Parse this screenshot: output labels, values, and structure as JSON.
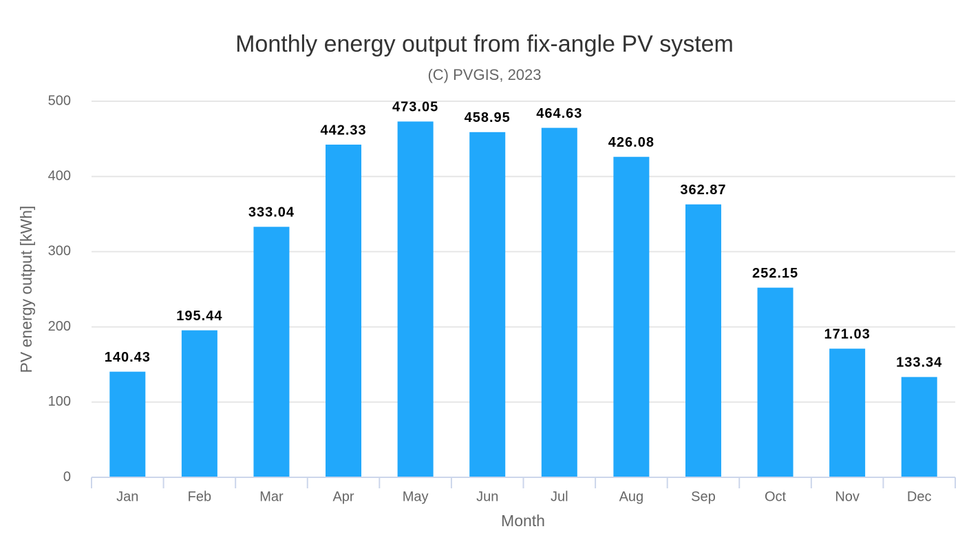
{
  "chart_data": {
    "type": "bar",
    "title": "Monthly energy output from fix-angle PV system",
    "subtitle": "(C) PVGIS, 2023",
    "x_label": "Month",
    "y_label": "PV energy output [kWh]",
    "categories": [
      "Jan",
      "Feb",
      "Mar",
      "Apr",
      "May",
      "Jun",
      "Jul",
      "Aug",
      "Sep",
      "Oct",
      "Nov",
      "Dec"
    ],
    "values": [
      140.43,
      195.44,
      333.04,
      442.33,
      473.05,
      458.95,
      464.63,
      426.08,
      362.87,
      252.15,
      171.03,
      133.34
    ],
    "color": "#21a8fb",
    "ylim": [
      0,
      500
    ],
    "yticks": [
      0,
      100,
      200,
      300,
      400,
      500
    ],
    "grid": true
  }
}
